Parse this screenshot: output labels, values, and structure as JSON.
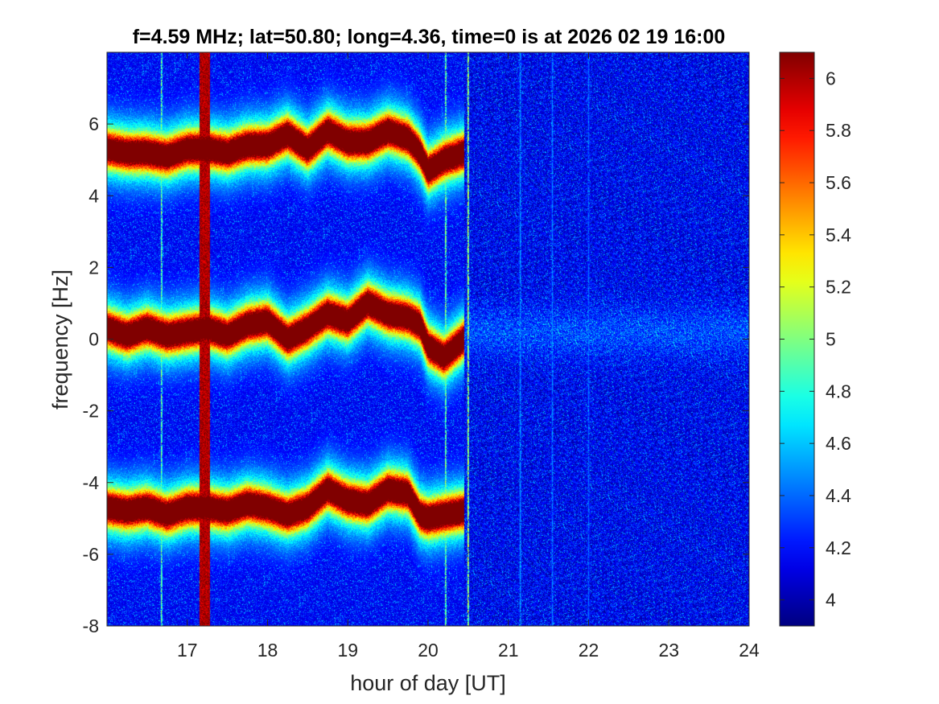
{
  "chart_data": {
    "type": "heatmap",
    "title": "f=4.59 MHz;  lat=50.80; long=4.36, time=0 is at 2026 02 19 16:00",
    "xlabel": "hour of day [UT]",
    "ylabel": "frequency [Hz]",
    "xlim": [
      16,
      24
    ],
    "ylim": [
      -8,
      8
    ],
    "x_ticks": [
      17,
      18,
      19,
      20,
      21,
      22,
      23,
      24
    ],
    "x_tick_labels": [
      "17",
      "18",
      "19",
      "20",
      "21",
      "22",
      "23",
      "24"
    ],
    "y_ticks": [
      -8,
      -6,
      -4,
      -2,
      0,
      2,
      4,
      6
    ],
    "y_tick_labels": [
      "-8",
      "-6",
      "-4",
      "-2",
      "0",
      "2",
      "4",
      "6"
    ],
    "colorbar": {
      "range": [
        3.9,
        6.1
      ],
      "ticks": [
        4,
        4.2,
        4.4,
        4.6,
        4.8,
        5,
        5.2,
        5.4,
        5.6,
        5.8,
        6
      ],
      "tick_labels": [
        "4",
        "4.2",
        "4.4",
        "4.6",
        "4.8",
        "5",
        "5.2",
        "5.4",
        "5.6",
        "5.8",
        "6"
      ],
      "colormap": "jet"
    },
    "background_level": 4.1,
    "features": [
      {
        "kind": "trace",
        "x": [
          16.0,
          16.25,
          16.5,
          16.75,
          17.0,
          17.25,
          17.5,
          17.75,
          18.0,
          18.25,
          18.5,
          18.75,
          19.0,
          19.25,
          19.5,
          19.75,
          19.9,
          20.0,
          20.2,
          20.45
        ],
        "y": [
          5.3,
          5.2,
          5.2,
          5.1,
          5.3,
          5.3,
          5.2,
          5.4,
          5.4,
          5.7,
          5.3,
          5.8,
          5.5,
          5.5,
          5.8,
          5.6,
          5.2,
          4.7,
          5.0,
          5.2
        ],
        "level": 6.1
      },
      {
        "kind": "trace",
        "x": [
          16.0,
          16.25,
          16.5,
          16.75,
          17.0,
          17.25,
          17.5,
          17.75,
          18.0,
          18.25,
          18.5,
          18.75,
          19.0,
          19.25,
          19.5,
          19.75,
          19.9,
          20.0,
          20.2,
          20.45
        ],
        "y": [
          0.3,
          0.1,
          0.3,
          0.1,
          0.2,
          0.3,
          0.1,
          0.4,
          0.5,
          0.0,
          0.3,
          0.7,
          0.5,
          1.0,
          0.7,
          0.6,
          0.4,
          -0.2,
          -0.5,
          0.0
        ],
        "level": 6.1
      },
      {
        "kind": "trace",
        "x": [
          16.0,
          16.25,
          16.5,
          16.75,
          17.0,
          17.25,
          17.5,
          17.75,
          18.0,
          18.25,
          18.5,
          18.75,
          19.0,
          19.25,
          19.5,
          19.75,
          19.9,
          20.0,
          20.2,
          20.45
        ],
        "y": [
          -4.7,
          -4.8,
          -4.7,
          -4.9,
          -4.7,
          -4.7,
          -4.8,
          -4.6,
          -4.7,
          -4.9,
          -4.7,
          -4.2,
          -4.5,
          -4.6,
          -4.2,
          -4.3,
          -4.9,
          -5.0,
          -4.9,
          -4.8
        ],
        "level": 6.1
      },
      {
        "kind": "vertical_band",
        "x_start": 17.15,
        "x_end": 17.28,
        "level": 6.0
      },
      {
        "kind": "vertical_line",
        "x": 16.68,
        "level": 5.5
      },
      {
        "kind": "vertical_line",
        "x": 20.22,
        "level": 5.6
      },
      {
        "kind": "vertical_line",
        "x": 20.5,
        "level": 5.8
      },
      {
        "kind": "vertical_line",
        "x": 21.15,
        "level": 4.7
      },
      {
        "kind": "vertical_line",
        "x": 21.55,
        "level": 4.6
      },
      {
        "kind": "vertical_line",
        "x": 22.0,
        "level": 4.5
      }
    ]
  }
}
